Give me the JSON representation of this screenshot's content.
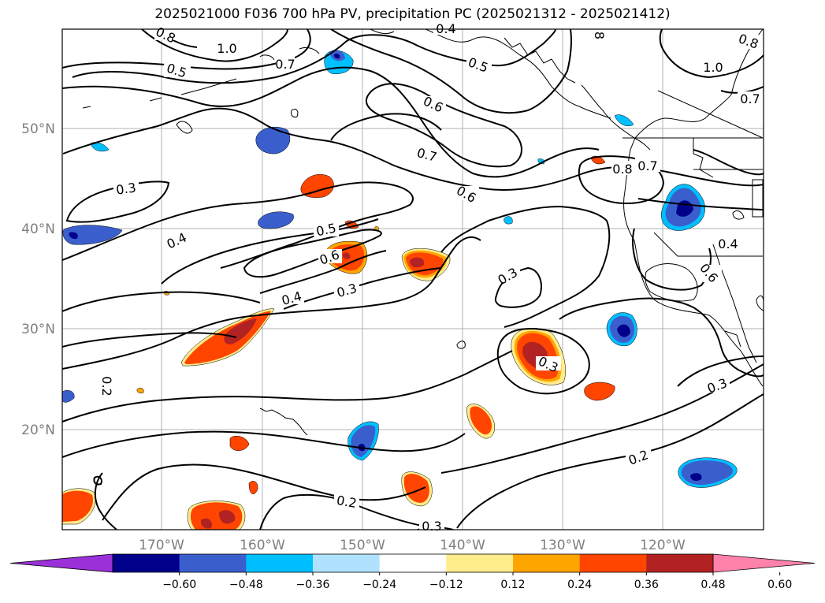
{
  "title": "2025021000 F036 700 hPa PV, precipitation PC (2025021312 - 2025021412)",
  "lat_labels": [
    "50°N",
    "40°N",
    "30°N",
    "20°N"
  ],
  "lon_labels": [
    "170°W",
    "160°W",
    "150°W",
    "140°W",
    "130°W",
    "120°W"
  ],
  "colorbar": {
    "ticks": [
      "−0.60",
      "−0.48",
      "−0.36",
      "−0.24",
      "−0.12",
      "0.12",
      "0.24",
      "0.36",
      "0.48",
      "0.60"
    ],
    "colors": [
      "#9b30d9",
      "#00008b",
      "#3a5fcd",
      "#00bfff",
      "#b0e2ff",
      "#ffffff",
      "#ffec8b",
      "#ffa500",
      "#ff4500",
      "#b22222",
      "#ff82ab"
    ]
  },
  "contour_labels": [
    {
      "text": "1.0"
    },
    {
      "text": "0.8"
    },
    {
      "text": "0.7"
    },
    {
      "text": "0.5"
    },
    {
      "text": "0.5"
    },
    {
      "text": "0.6"
    },
    {
      "text": "0.7"
    },
    {
      "text": "0.6"
    },
    {
      "text": "0.8"
    },
    {
      "text": "0.7"
    },
    {
      "text": "1.0"
    },
    {
      "text": "0.7"
    },
    {
      "text": "0.8"
    },
    {
      "text": "0.3"
    },
    {
      "text": "0.4"
    },
    {
      "text": "0.5"
    },
    {
      "text": "0.6"
    },
    {
      "text": "0.4"
    },
    {
      "text": "0.3"
    },
    {
      "text": "0.3"
    },
    {
      "text": "0.4"
    },
    {
      "text": "0.6"
    },
    {
      "text": "0.3"
    },
    {
      "text": "0.3"
    },
    {
      "text": "0.2"
    },
    {
      "text": "0.2"
    },
    {
      "text": "0.2"
    },
    {
      "text": "0.3"
    },
    {
      "text": "0.4"
    },
    {
      "text": "8"
    }
  ]
}
